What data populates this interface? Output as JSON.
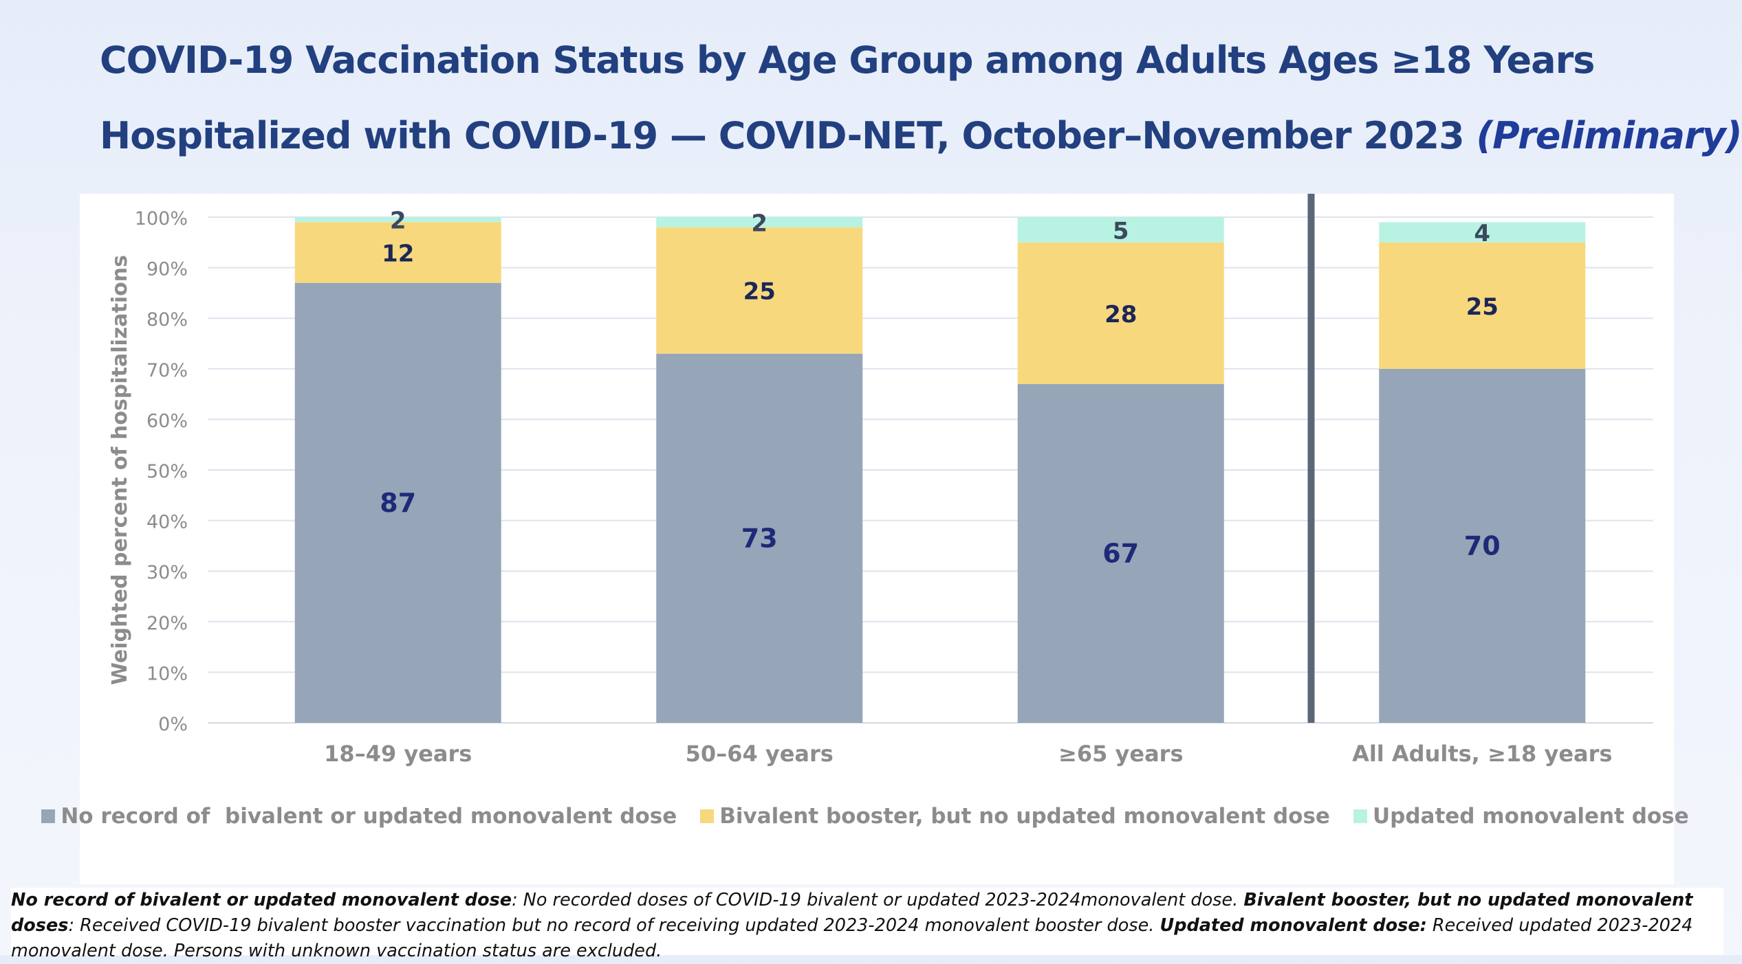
{
  "title": {
    "line1": "COVID-19 Vaccination Status by Age Group among Adults Ages ≥18 Years",
    "line2": "Hospitalized with COVID-19 — COVID-NET, October–November 2023",
    "line2_emphasis": "(Preliminary)"
  },
  "chart_data": {
    "type": "bar",
    "stacked": true,
    "categories": [
      "18–49 years",
      "50–64 years",
      "≥65 years",
      "All Adults, ≥18 years"
    ],
    "series": [
      {
        "name": "No record of  bivalent or updated monovalent dose",
        "color": "#96a5b8",
        "label_color": "#1e2a78",
        "values": [
          87,
          73,
          67,
          70
        ]
      },
      {
        "name": "Bivalent booster, but no updated monovalent dose",
        "color": "#f8d87c",
        "label_color": "#1c2659",
        "values": [
          12,
          25,
          28,
          25
        ]
      },
      {
        "name": "Updated monovalent dose",
        "color": "#b8f2e3",
        "label_color": "#3c4960",
        "values": [
          2,
          2,
          5,
          4
        ]
      }
    ],
    "ylabel": "Weighted percent of hospitalizations",
    "ylim": [
      0,
      100
    ],
    "yticks": [
      "0%",
      "10%",
      "20%",
      "30%",
      "40%",
      "50%",
      "60%",
      "70%",
      "80%",
      "90%",
      "100%"
    ],
    "grid": true,
    "separator_before_category": 3,
    "legend_position": "bottom"
  },
  "footnote": {
    "term1": "No record of bivalent or updated monovalent dose",
    "def1": ": No recorded doses of COVID-19 bivalent or updated 2023-2024monovalent dose. ",
    "term2": "Bivalent booster, but no updated monovalent doses",
    "def2": ": Received COVID-19 bivalent booster vaccination but no record of receiving updated 2023-2024 monovalent booster dose. ",
    "term3": "Updated monovalent dose:",
    "def3": " Received updated 2023-2024 monovalent dose. Persons with unknown vaccination status are excluded."
  }
}
